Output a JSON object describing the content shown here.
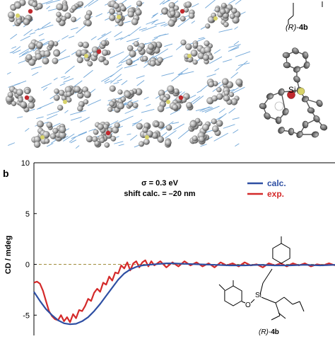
{
  "panel_a": {
    "compound_label_prefix": "(R)-",
    "compound_label_id": "4b",
    "atom_label": "Si"
  },
  "chart_data": {
    "type": "line",
    "panel_label": "b",
    "ylabel": "CD / mdeg",
    "ylim": [
      -7,
      10
    ],
    "yticks": [
      10,
      5,
      0,
      -5
    ],
    "xlim": [
      0,
      100
    ],
    "annotations": [
      "σ = 0.3 eV",
      "shift calc. = –20 nm"
    ],
    "legend_position": "top-right",
    "structure_label_prefix": "(R)-",
    "structure_label_id": "4b",
    "structure_atom_labels": [
      "O",
      "Si"
    ],
    "zero_line": {
      "y": 0,
      "color": "#a08c3c",
      "style": "dashed"
    },
    "series": [
      {
        "name": "calc.",
        "color": "#2e4fa3",
        "x": [
          0,
          2,
          4,
          6,
          8,
          10,
          12,
          14,
          16,
          18,
          20,
          22,
          24,
          26,
          28,
          30,
          32,
          34,
          36,
          38,
          40,
          42,
          44,
          46,
          50,
          55,
          60,
          65,
          70,
          75,
          80,
          85,
          90,
          95,
          100
        ],
        "y": [
          -2.7,
          -3.6,
          -4.4,
          -5.0,
          -5.5,
          -5.8,
          -5.9,
          -5.85,
          -5.6,
          -5.2,
          -4.6,
          -3.9,
          -3.1,
          -2.3,
          -1.5,
          -0.9,
          -0.5,
          -0.25,
          -0.1,
          -0.05,
          0.0,
          0.05,
          0.1,
          0.1,
          0.05,
          0.0,
          -0.05,
          -0.1,
          -0.1,
          -0.05,
          -0.1,
          -0.1,
          -0.05,
          -0.1,
          -0.05
        ]
      },
      {
        "name": "exp.",
        "color": "#d42a2a",
        "x": [
          0,
          1,
          2,
          3,
          4,
          5,
          6,
          7,
          8,
          9,
          10,
          11,
          12,
          13,
          14,
          15,
          16,
          17,
          18,
          19,
          20,
          21,
          22,
          23,
          24,
          25,
          26,
          27,
          28,
          29,
          30,
          31,
          32,
          33,
          34,
          35,
          36,
          37,
          38,
          39,
          40,
          42,
          44,
          46,
          48,
          50,
          52,
          54,
          56,
          58,
          60,
          62,
          64,
          66,
          68,
          70,
          72,
          74,
          76,
          78,
          80,
          82,
          84,
          86,
          88,
          90,
          92,
          94,
          96,
          98,
          100
        ],
        "y": [
          -1.8,
          -1.7,
          -1.9,
          -2.6,
          -3.6,
          -4.6,
          -5.1,
          -5.4,
          -5.5,
          -5.0,
          -5.6,
          -5.2,
          -5.7,
          -4.9,
          -5.3,
          -4.5,
          -4.6,
          -4.1,
          -3.4,
          -3.6,
          -2.8,
          -2.4,
          -2.7,
          -1.8,
          -2.0,
          -1.2,
          -1.6,
          -0.8,
          -0.9,
          -0.1,
          -0.4,
          0.2,
          -0.6,
          0.1,
          0.3,
          -0.3,
          0.2,
          0.4,
          -0.2,
          0.3,
          -0.1,
          0.3,
          -0.3,
          0.2,
          -0.2,
          0.3,
          -0.1,
          0.2,
          -0.2,
          0.1,
          -0.3,
          0.2,
          -0.1,
          0.1,
          -0.2,
          0.2,
          -0.1,
          0.0,
          -0.3,
          0.1,
          -0.1,
          0.1,
          -0.2,
          0.1,
          -0.1,
          0.1,
          -0.2,
          0.0,
          -0.1,
          0.1,
          -0.1
        ]
      }
    ]
  },
  "colors": {
    "atom_gray": "#8f8f8f",
    "atom_light": "#d6d6d6",
    "wire_blue": "#6fa6d8",
    "oxygen_red": "#c0282d",
    "silicon_yellow": "#d8d36a"
  }
}
